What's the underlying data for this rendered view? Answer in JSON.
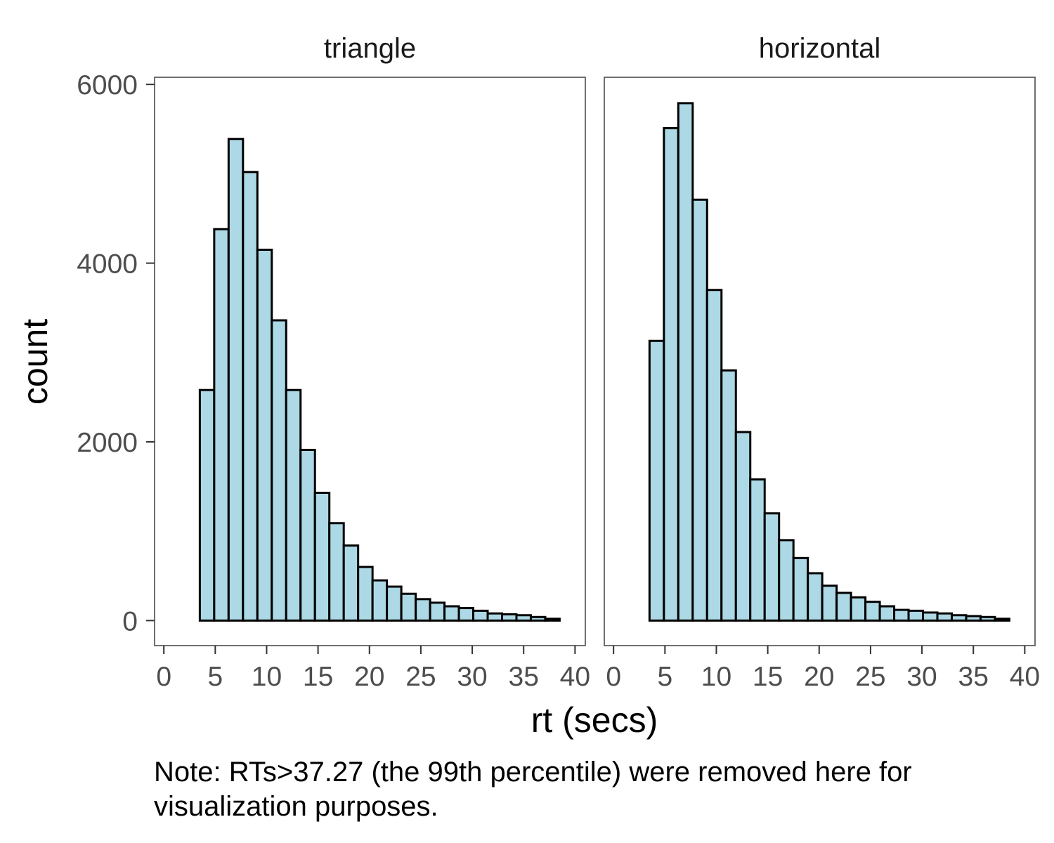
{
  "chart_data": {
    "type": "bar",
    "xlabel": "rt (secs)",
    "ylabel": "count",
    "x_ticks": [
      0,
      5,
      10,
      15,
      20,
      25,
      30,
      35,
      40
    ],
    "y_ticks": [
      0,
      2000,
      4000,
      6000
    ],
    "xlim": [
      -0.9,
      41
    ],
    "ylim": [
      -280,
      6080
    ],
    "bin_width": 1.4,
    "bar_fill": "#add8e6",
    "bar_stroke": "#000000",
    "grid": false,
    "panels": [
      {
        "title": "triangle",
        "bin_centers": [
          1.4,
          2.8,
          4.2,
          5.6,
          7.0,
          8.4,
          9.8,
          11.2,
          12.6,
          14.0,
          15.4,
          16.8,
          18.2,
          19.6,
          21.0,
          22.4,
          23.8,
          25.2,
          26.6,
          28.0,
          29.4,
          30.8,
          32.2,
          33.6,
          35.0,
          36.4,
          37.8
        ],
        "values": [
          0,
          0,
          2580,
          4380,
          5390,
          5020,
          4150,
          3360,
          2580,
          1910,
          1430,
          1090,
          840,
          600,
          450,
          380,
          300,
          240,
          200,
          160,
          140,
          110,
          80,
          70,
          60,
          40,
          20
        ]
      },
      {
        "title": "horizontal",
        "bin_centers": [
          1.4,
          2.8,
          4.2,
          5.6,
          7.0,
          8.4,
          9.8,
          11.2,
          12.6,
          14.0,
          15.4,
          16.8,
          18.2,
          19.6,
          21.0,
          22.4,
          23.8,
          25.2,
          26.6,
          28.0,
          29.4,
          30.8,
          32.2,
          33.6,
          35.0,
          36.4,
          37.8
        ],
        "values": [
          0,
          0,
          3130,
          5510,
          5790,
          4710,
          3700,
          2800,
          2110,
          1580,
          1200,
          900,
          700,
          530,
          390,
          310,
          260,
          210,
          160,
          120,
          110,
          90,
          80,
          60,
          50,
          40,
          20
        ]
      }
    ]
  },
  "caption": {
    "line1": "Note: RTs>37.27 (the 99th percentile) were removed here for",
    "line2": "visualization purposes."
  }
}
